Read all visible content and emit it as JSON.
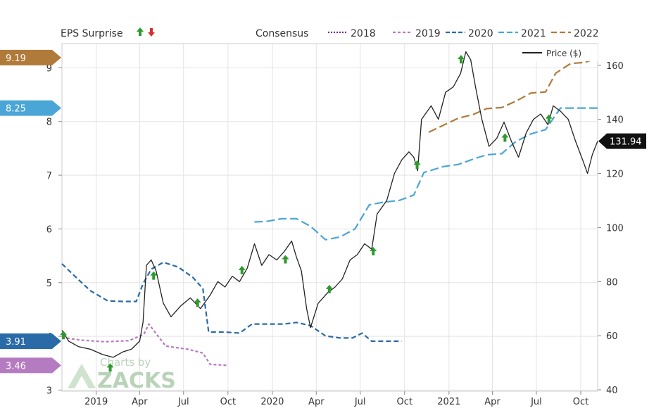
{
  "chart_data": {
    "type": "line",
    "title": "EPS Surprise",
    "consensus_label": "Consensus",
    "price_label": "Price ($)",
    "colors": {
      "2018": "#6b2f8e",
      "2019": "#b57bc0",
      "2020": "#2a6aa6",
      "2021": "#4aa6d6",
      "2022": "#b07a3a",
      "price": "#222222",
      "up": "#2e9a2e",
      "down": "#d83030",
      "grid": "#e3e3e3",
      "last_price_tag": "#111111"
    },
    "x_ticks": [
      "2019",
      "Apr",
      "Jul",
      "Oct",
      "2020",
      "Apr",
      "Jul",
      "Oct",
      "2021",
      "Apr",
      "Jul",
      "Oct"
    ],
    "x_tick_dates": [
      "2019-01-01",
      "2019-04-01",
      "2019-07-01",
      "2019-10-01",
      "2020-01-01",
      "2020-04-01",
      "2020-07-01",
      "2020-10-01",
      "2021-01-01",
      "2021-04-01",
      "2021-07-01",
      "2021-10-01"
    ],
    "x_range": [
      "2018-10-22",
      "2021-11-05"
    ],
    "left_axis": {
      "label": "EPS",
      "ticks": [
        "3",
        "4",
        "5",
        "6",
        "7",
        "8",
        "9"
      ],
      "ylim": [
        2.98,
        9.45
      ]
    },
    "right_axis": {
      "label": "Price ($)",
      "ticks": [
        "40",
        "60",
        "80",
        "100",
        "120",
        "140",
        "160"
      ],
      "ylim": [
        39.5,
        168
      ]
    },
    "eps_tags": [
      {
        "label": "9.19",
        "value": 9.19,
        "series": "2022"
      },
      {
        "label": "8.25",
        "value": 8.25,
        "series": "2021"
      },
      {
        "label": "3.91",
        "value": 3.91,
        "series": "2020"
      },
      {
        "label": "3.46",
        "value": 3.46,
        "series": "2019"
      }
    ],
    "last_price": {
      "label": "131.94",
      "value": 131.94
    },
    "series": [
      {
        "name": "2019",
        "axis": "eps",
        "dash": "4 3",
        "points": [
          [
            "2018-10-22",
            3.98
          ],
          [
            "2018-12-01",
            3.93
          ],
          [
            "2019-01-20",
            3.9
          ],
          [
            "2019-03-10",
            3.92
          ],
          [
            "2019-04-10",
            4.04
          ],
          [
            "2019-04-20",
            4.23
          ],
          [
            "2019-05-25",
            3.82
          ],
          [
            "2019-07-10",
            3.76
          ],
          [
            "2019-08-10",
            3.69
          ],
          [
            "2019-08-25",
            3.48
          ],
          [
            "2019-10-01",
            3.46
          ]
        ]
      },
      {
        "name": "2020",
        "axis": "eps",
        "dash": "7 4",
        "points": [
          [
            "2018-10-22",
            5.35
          ],
          [
            "2018-11-20",
            5.1
          ],
          [
            "2018-12-20",
            4.85
          ],
          [
            "2019-01-25",
            4.66
          ],
          [
            "2019-02-25",
            4.65
          ],
          [
            "2019-03-25",
            4.65
          ],
          [
            "2019-04-08",
            4.98
          ],
          [
            "2019-04-25",
            5.25
          ],
          [
            "2019-05-20",
            5.38
          ],
          [
            "2019-06-20",
            5.29
          ],
          [
            "2019-07-20",
            5.1
          ],
          [
            "2019-08-10",
            4.89
          ],
          [
            "2019-08-22",
            4.08
          ],
          [
            "2019-09-25",
            4.08
          ],
          [
            "2019-10-25",
            4.06
          ],
          [
            "2019-11-20",
            4.23
          ],
          [
            "2019-12-20",
            4.23
          ],
          [
            "2020-01-25",
            4.23
          ],
          [
            "2020-02-20",
            4.26
          ],
          [
            "2020-03-20",
            4.2
          ],
          [
            "2020-04-20",
            4.01
          ],
          [
            "2020-05-20",
            3.97
          ],
          [
            "2020-06-15",
            3.97
          ],
          [
            "2020-07-05",
            4.06
          ],
          [
            "2020-07-25",
            3.91
          ],
          [
            "2020-08-20",
            3.91
          ],
          [
            "2020-09-25",
            3.91
          ]
        ]
      },
      {
        "name": "2021",
        "axis": "eps",
        "dash": "12 5",
        "points": [
          [
            "2019-11-25",
            6.13
          ],
          [
            "2019-12-20",
            6.14
          ],
          [
            "2020-01-20",
            6.19
          ],
          [
            "2020-02-20",
            6.19
          ],
          [
            "2020-03-20",
            6.05
          ],
          [
            "2020-04-20",
            5.8
          ],
          [
            "2020-05-20",
            5.85
          ],
          [
            "2020-06-20",
            6.0
          ],
          [
            "2020-07-20",
            6.45
          ],
          [
            "2020-08-20",
            6.5
          ],
          [
            "2020-09-20",
            6.53
          ],
          [
            "2020-10-20",
            6.63
          ],
          [
            "2020-11-10",
            7.05
          ],
          [
            "2020-12-20",
            7.16
          ],
          [
            "2021-01-20",
            7.2
          ],
          [
            "2021-02-20",
            7.3
          ],
          [
            "2021-03-20",
            7.38
          ],
          [
            "2021-04-20",
            7.4
          ],
          [
            "2021-05-20",
            7.63
          ],
          [
            "2021-06-20",
            7.77
          ],
          [
            "2021-07-20",
            7.85
          ],
          [
            "2021-08-20",
            8.25
          ],
          [
            "2021-09-20",
            8.25
          ],
          [
            "2021-11-05",
            8.25
          ]
        ]
      },
      {
        "name": "2022",
        "axis": "eps",
        "dash": "12 5",
        "points": [
          [
            "2020-11-20",
            7.8
          ],
          [
            "2020-12-20",
            7.93
          ],
          [
            "2021-01-20",
            8.06
          ],
          [
            "2021-02-20",
            8.13
          ],
          [
            "2021-03-20",
            8.24
          ],
          [
            "2021-04-20",
            8.26
          ],
          [
            "2021-05-20",
            8.38
          ],
          [
            "2021-06-20",
            8.53
          ],
          [
            "2021-07-20",
            8.55
          ],
          [
            "2021-08-10",
            8.9
          ],
          [
            "2021-09-10",
            9.08
          ],
          [
            "2021-10-10",
            9.1
          ],
          [
            "2021-11-05",
            9.19
          ]
        ]
      },
      {
        "name": "Price ($)",
        "axis": "price",
        "points": [
          [
            "2018-10-22",
            62
          ],
          [
            "2018-11-05",
            58
          ],
          [
            "2018-11-25",
            56
          ],
          [
            "2018-12-20",
            55
          ],
          [
            "2019-01-15",
            53
          ],
          [
            "2019-02-05",
            52
          ],
          [
            "2019-02-25",
            54
          ],
          [
            "2019-03-15",
            55
          ],
          [
            "2019-04-01",
            58
          ],
          [
            "2019-04-08",
            65
          ],
          [
            "2019-04-15",
            86
          ],
          [
            "2019-04-25",
            88
          ],
          [
            "2019-05-05",
            84
          ],
          [
            "2019-05-20",
            72
          ],
          [
            "2019-06-05",
            67
          ],
          [
            "2019-06-25",
            71
          ],
          [
            "2019-07-15",
            74
          ],
          [
            "2019-08-05",
            70
          ],
          [
            "2019-08-25",
            75
          ],
          [
            "2019-09-10",
            80
          ],
          [
            "2019-09-25",
            78
          ],
          [
            "2019-10-10",
            82
          ],
          [
            "2019-10-25",
            80
          ],
          [
            "2019-11-10",
            85
          ],
          [
            "2019-11-25",
            94
          ],
          [
            "2019-12-10",
            86
          ],
          [
            "2019-12-25",
            90
          ],
          [
            "2020-01-10",
            88
          ],
          [
            "2020-01-25",
            91
          ],
          [
            "2020-02-10",
            95
          ],
          [
            "2020-02-20",
            89
          ],
          [
            "2020-03-01",
            84
          ],
          [
            "2020-03-12",
            70
          ],
          [
            "2020-03-20",
            63
          ],
          [
            "2020-04-05",
            72
          ],
          [
            "2020-04-25",
            76
          ],
          [
            "2020-05-10",
            78
          ],
          [
            "2020-05-25",
            81
          ],
          [
            "2020-06-10",
            88
          ],
          [
            "2020-06-25",
            90
          ],
          [
            "2020-07-10",
            94
          ],
          [
            "2020-07-25",
            92
          ],
          [
            "2020-08-05",
            105
          ],
          [
            "2020-08-25",
            110
          ],
          [
            "2020-09-10",
            120
          ],
          [
            "2020-09-25",
            125
          ],
          [
            "2020-10-10",
            128
          ],
          [
            "2020-10-20",
            126
          ],
          [
            "2020-10-28",
            121
          ],
          [
            "2020-11-05",
            140
          ],
          [
            "2020-11-25",
            145
          ],
          [
            "2020-12-10",
            140
          ],
          [
            "2020-12-25",
            150
          ],
          [
            "2021-01-10",
            152
          ],
          [
            "2021-01-25",
            157
          ],
          [
            "2021-02-05",
            165
          ],
          [
            "2021-02-15",
            162
          ],
          [
            "2021-02-25",
            152
          ],
          [
            "2021-03-10",
            140
          ],
          [
            "2021-03-25",
            130
          ],
          [
            "2021-04-10",
            133
          ],
          [
            "2021-04-25",
            139
          ],
          [
            "2021-05-10",
            132
          ],
          [
            "2021-05-25",
            126
          ],
          [
            "2021-06-10",
            135
          ],
          [
            "2021-06-25",
            140
          ],
          [
            "2021-07-10",
            142
          ],
          [
            "2021-07-25",
            138
          ],
          [
            "2021-08-05",
            145
          ],
          [
            "2021-08-20",
            143
          ],
          [
            "2021-09-05",
            140
          ],
          [
            "2021-09-20",
            132
          ],
          [
            "2021-10-05",
            125
          ],
          [
            "2021-10-15",
            120
          ],
          [
            "2021-10-25",
            127
          ],
          [
            "2021-11-05",
            131.94
          ]
        ]
      }
    ],
    "surprises": [
      {
        "date": "2018-10-25",
        "value": 60,
        "dir": "up"
      },
      {
        "date": "2019-01-30",
        "value": 48,
        "dir": "up"
      },
      {
        "date": "2019-04-30",
        "value": 82,
        "dir": "up"
      },
      {
        "date": "2019-07-30",
        "value": 72,
        "dir": "up"
      },
      {
        "date": "2019-10-30",
        "value": 84,
        "dir": "up"
      },
      {
        "date": "2020-01-28",
        "value": 88,
        "dir": "up"
      },
      {
        "date": "2020-04-28",
        "value": 77,
        "dir": "up"
      },
      {
        "date": "2020-07-28",
        "value": 91,
        "dir": "up"
      },
      {
        "date": "2020-10-27",
        "value": 123,
        "dir": "up"
      },
      {
        "date": "2021-01-26",
        "value": 162,
        "dir": "up"
      },
      {
        "date": "2021-04-27",
        "value": 133,
        "dir": "up"
      },
      {
        "date": "2021-07-27",
        "value": 140,
        "dir": "up"
      }
    ],
    "legend": [
      "2018",
      "2019",
      "2020",
      "2021",
      "2022"
    ],
    "watermark": "Charts by ZACKS"
  }
}
